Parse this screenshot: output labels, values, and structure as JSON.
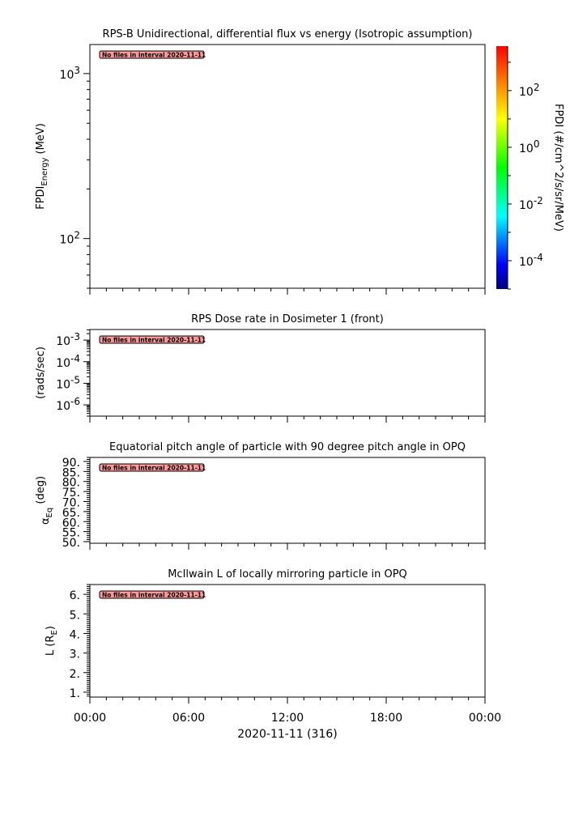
{
  "no_data_message": "No files in interval 2020-11-11",
  "no_data_badge_color": "#ff9999",
  "x_axis": {
    "type": "time",
    "range": [
      "2020-11-11T00:00",
      "2020-11-12T00:00"
    ],
    "tick_labels": [
      "00:00",
      "06:00",
      "12:00",
      "18:00",
      "00:00"
    ],
    "major_step_hours": 6,
    "minor_step_hours": 1,
    "label": "2020-11-11 (316)"
  },
  "chart_data": [
    {
      "type": "heatmap",
      "title": "RPS-B  Unidirectional, differential flux vs energy (Isotropic assumption)",
      "ylabel": {
        "main": "FPDI",
        "sub": "Energy",
        "rest": " (MeV)"
      },
      "yscale": "log",
      "ylim": [
        50,
        1500
      ],
      "ytick_labels": [
        {
          "base": "10",
          "exp": "3",
          "value": 1000
        },
        {
          "base": "10",
          "exp": "2",
          "value": 100
        }
      ],
      "values": [],
      "colorbar": {
        "label": "FPDI (#/cm^2/s/sr/MeV)",
        "scale": "log",
        "range": [
          1e-05,
          3700
        ],
        "colormap": "rainbow",
        "tick_labels": [
          {
            "base": "10",
            "exp": "2",
            "value": 100
          },
          {
            "base": "10",
            "exp": "0",
            "value": 1
          },
          {
            "base": "10",
            "exp": "-2",
            "value": 0.01
          },
          {
            "base": "10",
            "exp": "-4",
            "value": 0.0001
          }
        ]
      }
    },
    {
      "type": "line",
      "title": "RPS  Dose rate in Dosimeter 1 (front)",
      "ylabel": {
        "main": "(rads/sec)"
      },
      "yscale": "log",
      "ylim": [
        3e-07,
        0.0031
      ],
      "ytick_labels": [
        {
          "base": "10",
          "exp": "-3",
          "value": 0.001
        },
        {
          "base": "10",
          "exp": "-4",
          "value": 0.0001
        },
        {
          "base": "10",
          "exp": "-5",
          "value": 1e-05
        },
        {
          "base": "10",
          "exp": "-6",
          "value": 1e-06
        }
      ],
      "values": []
    },
    {
      "type": "line",
      "title": "Equatorial pitch angle of particle with 90 degree pitch angle in OPQ",
      "ylabel": {
        "main": "α",
        "sub": "Eq",
        "sup": "(deg)"
      },
      "yscale": "linear",
      "ylim": [
        49.2,
        92
      ],
      "ytick_labels": [
        {
          "base": "90.",
          "value": 90
        },
        {
          "base": "85.",
          "value": 85
        },
        {
          "base": "80.",
          "value": 80
        },
        {
          "base": "75.",
          "value": 75
        },
        {
          "base": "70.",
          "value": 70
        },
        {
          "base": "65.",
          "value": 65
        },
        {
          "base": "60.",
          "value": 60
        },
        {
          "base": "55.",
          "value": 55
        },
        {
          "base": "50.",
          "value": 50
        }
      ],
      "minor_step": 1,
      "values": []
    },
    {
      "type": "line",
      "title": "McIlwain L of locally mirroring particle in OPQ",
      "ylabel": {
        "main": "L (R",
        "sub": "E",
        "rest": ")"
      },
      "yscale": "linear",
      "ylim": [
        0.75,
        6.5
      ],
      "ytick_labels": [
        {
          "base": "6.",
          "value": 6
        },
        {
          "base": "5.",
          "value": 5
        },
        {
          "base": "4.",
          "value": 4
        },
        {
          "base": "3.",
          "value": 3
        },
        {
          "base": "2.",
          "value": 2
        },
        {
          "base": "1.",
          "value": 1
        }
      ],
      "minor_step": 0.1,
      "values": []
    }
  ]
}
